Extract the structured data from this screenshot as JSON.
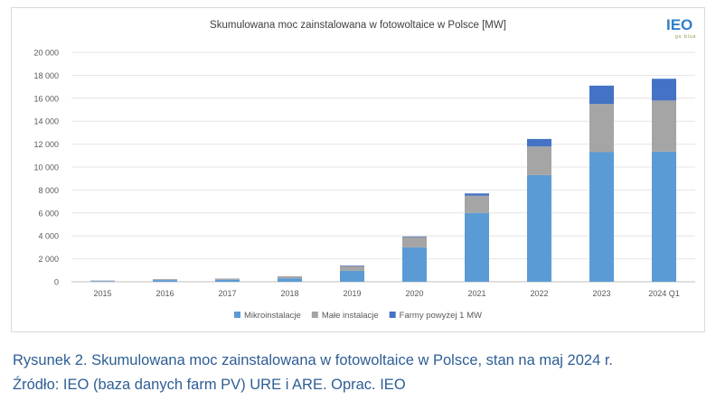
{
  "logo": {
    "main": "IEO",
    "sub": "go blue"
  },
  "chart_data": {
    "type": "bar",
    "stacked": true,
    "title": "Skumulowana moc zainstalowana w fotowoltaice w Polsce [MW]",
    "categories": [
      "2015",
      "2016",
      "2017",
      "2018",
      "2019",
      "2020",
      "2021",
      "2022",
      "2023",
      "2024 Q1"
    ],
    "series": [
      {
        "name": "Mikroinstalacje",
        "color": "#5b9bd5",
        "values": [
          60,
          150,
          180,
          300,
          950,
          3000,
          6000,
          9300,
          11300,
          11350
        ]
      },
      {
        "name": "Małe instalacje",
        "color": "#a5a5a5",
        "values": [
          50,
          80,
          100,
          180,
          450,
          900,
          1500,
          2500,
          4200,
          4450
        ]
      },
      {
        "name": "Farmy powyżej 1 MW",
        "color": "#4472c4",
        "values": [
          0,
          0,
          0,
          0,
          20,
          50,
          200,
          650,
          1600,
          1900
        ]
      }
    ],
    "yticks": [
      "0",
      "2 000",
      "4 000",
      "6 000",
      "8 000",
      "10 000",
      "12 000",
      "14 000",
      "16 000",
      "18 000",
      "20 000"
    ],
    "ylim": [
      0,
      20000
    ],
    "grid": true,
    "legend": "bottom"
  },
  "caption": {
    "line1": "Rysunek 2. Skumulowana moc zainstalowana w fotowoltaice w Polsce, stan na maj 2024 r.",
    "line2": "Źródło: IEO (baza danych farm PV) URE i ARE. Oprac. IEO"
  }
}
